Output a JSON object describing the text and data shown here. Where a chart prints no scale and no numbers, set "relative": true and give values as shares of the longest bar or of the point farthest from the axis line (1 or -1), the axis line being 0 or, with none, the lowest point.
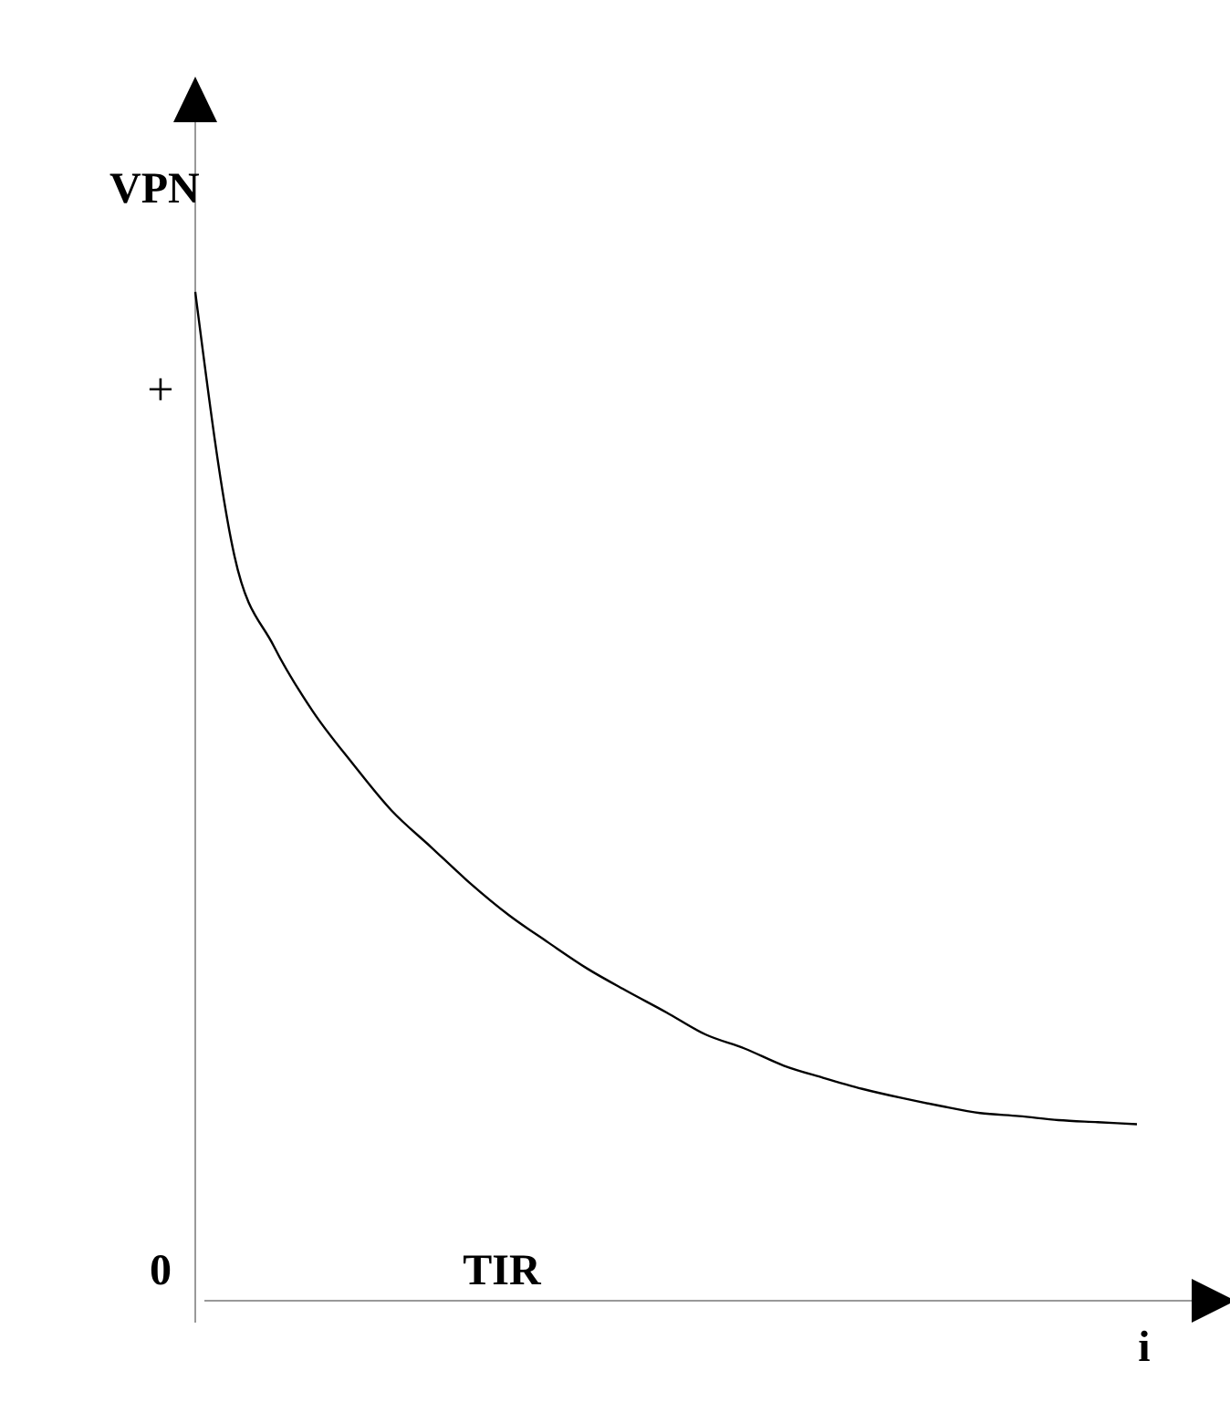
{
  "chart_data": {
    "type": "line",
    "relative": true,
    "ylabel": "VPN",
    "xlabel": "i",
    "annotations": [
      "+",
      "0",
      "TIR"
    ],
    "categories": [
      null,
      null,
      null,
      null,
      null,
      null,
      null,
      null,
      null,
      null,
      null,
      null,
      null,
      null,
      null,
      null,
      null,
      null,
      null,
      null,
      null,
      null,
      null,
      null,
      null
    ],
    "series": [
      {
        "color": "#000000",
        "values": [
          1,
          0.738,
          0.649,
          0.584,
          0.533,
          0.486,
          0.45,
          0.414,
          0.382,
          0.355,
          0.329,
          0.307,
          0.286,
          0.264,
          0.25,
          0.233,
          0.221,
          0.21,
          0.201,
          0.193,
          0.186,
          0.183,
          0.179,
          0.177,
          0.175
        ]
      }
    ]
  }
}
